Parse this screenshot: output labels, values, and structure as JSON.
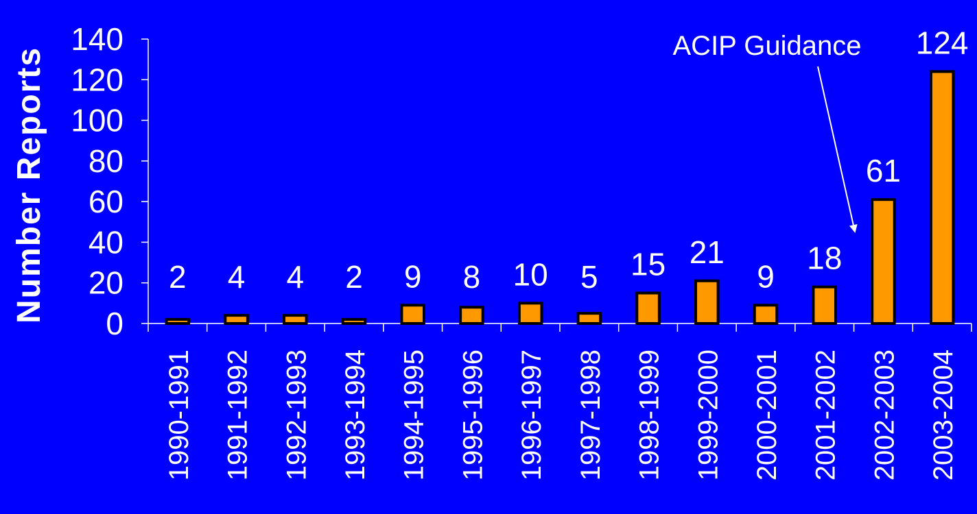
{
  "chart_data": {
    "type": "bar",
    "title": "",
    "xlabel": "",
    "ylabel": "Number Reports",
    "categories": [
      "1990-1991",
      "1991-1992",
      "1992-1993",
      "1993-1994",
      "1994-1995",
      "1995-1996",
      "1996-1997",
      "1997-1998",
      "1998-1999",
      "1999-2000",
      "2000-2001",
      "2001-2002",
      "2002-2003",
      "2003-2004"
    ],
    "values": [
      2,
      4,
      4,
      2,
      9,
      8,
      10,
      5,
      15,
      21,
      9,
      18,
      61,
      124
    ],
    "ylim": [
      0,
      140
    ],
    "yticks": [
      0,
      20,
      40,
      60,
      80,
      100,
      120,
      140
    ],
    "grid": false,
    "legend": "none",
    "annotation": {
      "text": "ACIP Guidance",
      "points_to": "2002-2003"
    },
    "colors": {
      "background": "#0000ff",
      "bar_fill": "#ff9900",
      "bar_stroke": "#000000",
      "text": "#ffffff",
      "axis": "#ffffff"
    }
  }
}
